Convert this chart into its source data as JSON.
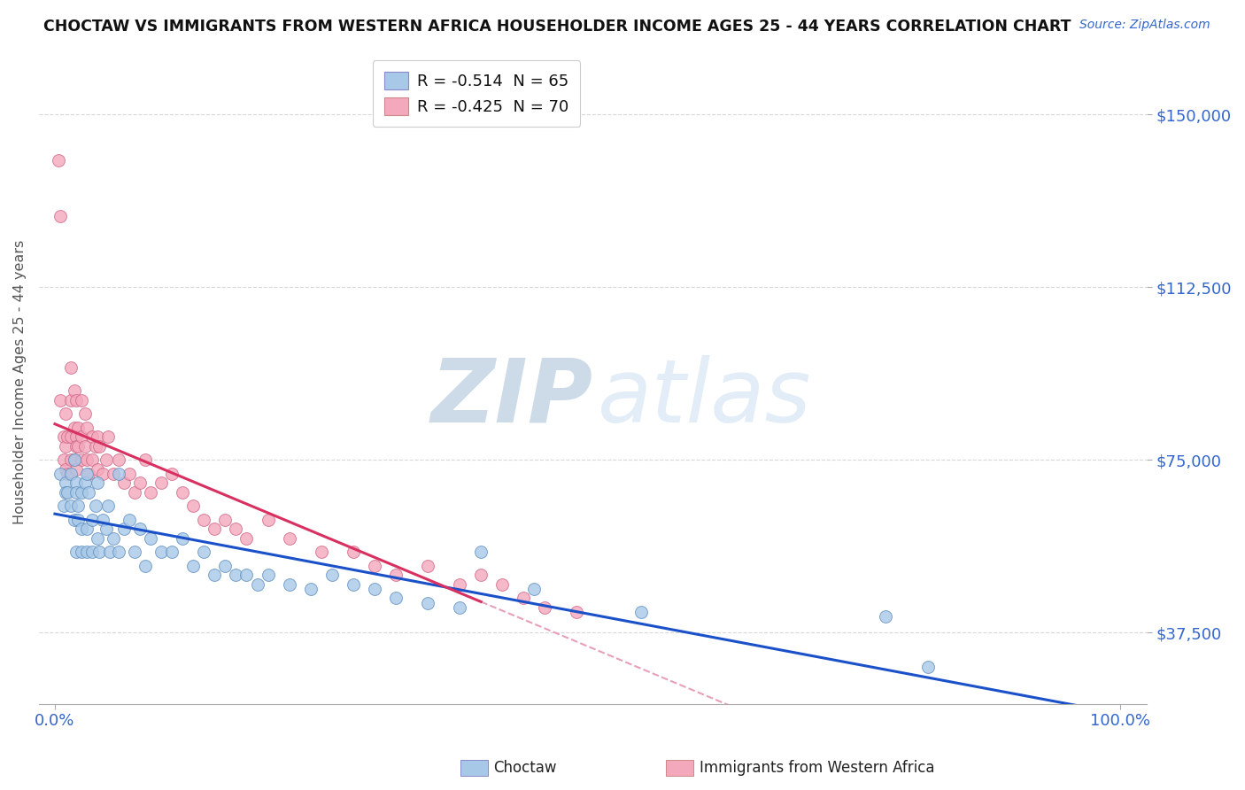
{
  "title": "CHOCTAW VS IMMIGRANTS FROM WESTERN AFRICA HOUSEHOLDER INCOME AGES 25 - 44 YEARS CORRELATION CHART",
  "source": "Source: ZipAtlas.com",
  "ylabel": "Householder Income Ages 25 - 44 years",
  "ylim": [
    22000,
    162000
  ],
  "yticks": [
    37500,
    75000,
    112500,
    150000
  ],
  "ytick_labels": [
    "$37,500",
    "$75,000",
    "$112,500",
    "$150,000"
  ],
  "xlim": [
    -0.015,
    1.025
  ],
  "xticks": [
    0.0,
    1.0
  ],
  "xtick_labels": [
    "0.0%",
    "100.0%"
  ],
  "choctaw_R": -0.514,
  "choctaw_N": 65,
  "wa_R": -0.425,
  "wa_N": 70,
  "choctaw_fill": "#a8c8e8",
  "choctaw_edge": "#6090c0",
  "wa_fill": "#f4a8bc",
  "wa_edge": "#d06888",
  "trend_blue": "#1a50c8",
  "trend_pink": "#d83060",
  "trend_pink_dash": "#e8a0b8",
  "grid_color": "#d8d8d8",
  "bg_color": "#ffffff",
  "title_color": "#111111",
  "source_color": "#3366cc",
  "tick_color_blue": "#3366cc",
  "legend_text_color": "#111111",
  "legend_rv_color": "#d03060",
  "legend_nv_color": "#1a50c8",
  "choctaw_x": [
    0.005,
    0.008,
    0.01,
    0.01,
    0.012,
    0.015,
    0.015,
    0.018,
    0.018,
    0.02,
    0.02,
    0.02,
    0.022,
    0.022,
    0.025,
    0.025,
    0.025,
    0.028,
    0.03,
    0.03,
    0.03,
    0.032,
    0.035,
    0.035,
    0.038,
    0.04,
    0.04,
    0.042,
    0.045,
    0.048,
    0.05,
    0.052,
    0.055,
    0.06,
    0.06,
    0.065,
    0.07,
    0.075,
    0.08,
    0.085,
    0.09,
    0.1,
    0.11,
    0.12,
    0.13,
    0.14,
    0.15,
    0.16,
    0.17,
    0.18,
    0.19,
    0.2,
    0.22,
    0.24,
    0.26,
    0.28,
    0.3,
    0.32,
    0.35,
    0.38,
    0.4,
    0.45,
    0.55,
    0.78,
    0.82
  ],
  "choctaw_y": [
    72000,
    65000,
    70000,
    68000,
    68000,
    65000,
    72000,
    62000,
    75000,
    70000,
    68000,
    55000,
    65000,
    62000,
    68000,
    60000,
    55000,
    70000,
    72000,
    60000,
    55000,
    68000,
    62000,
    55000,
    65000,
    70000,
    58000,
    55000,
    62000,
    60000,
    65000,
    55000,
    58000,
    72000,
    55000,
    60000,
    62000,
    55000,
    60000,
    52000,
    58000,
    55000,
    55000,
    58000,
    52000,
    55000,
    50000,
    52000,
    50000,
    50000,
    48000,
    50000,
    48000,
    47000,
    50000,
    48000,
    47000,
    45000,
    44000,
    43000,
    55000,
    47000,
    42000,
    41000,
    30000
  ],
  "wa_x": [
    0.003,
    0.005,
    0.005,
    0.008,
    0.008,
    0.01,
    0.01,
    0.01,
    0.012,
    0.012,
    0.015,
    0.015,
    0.015,
    0.015,
    0.018,
    0.018,
    0.018,
    0.02,
    0.02,
    0.02,
    0.02,
    0.022,
    0.022,
    0.025,
    0.025,
    0.025,
    0.028,
    0.028,
    0.03,
    0.03,
    0.032,
    0.035,
    0.035,
    0.038,
    0.04,
    0.04,
    0.042,
    0.045,
    0.048,
    0.05,
    0.055,
    0.06,
    0.065,
    0.07,
    0.075,
    0.08,
    0.085,
    0.09,
    0.1,
    0.11,
    0.12,
    0.13,
    0.14,
    0.15,
    0.16,
    0.17,
    0.18,
    0.2,
    0.22,
    0.25,
    0.28,
    0.3,
    0.32,
    0.35,
    0.38,
    0.4,
    0.42,
    0.44,
    0.46,
    0.49
  ],
  "wa_y": [
    140000,
    128000,
    88000,
    80000,
    75000,
    78000,
    85000,
    73000,
    80000,
    72000,
    95000,
    88000,
    80000,
    75000,
    90000,
    82000,
    75000,
    80000,
    78000,
    88000,
    73000,
    82000,
    78000,
    88000,
    80000,
    75000,
    85000,
    78000,
    82000,
    75000,
    72000,
    80000,
    75000,
    78000,
    80000,
    73000,
    78000,
    72000,
    75000,
    80000,
    72000,
    75000,
    70000,
    72000,
    68000,
    70000,
    75000,
    68000,
    70000,
    72000,
    68000,
    65000,
    62000,
    60000,
    62000,
    60000,
    58000,
    62000,
    58000,
    55000,
    55000,
    52000,
    50000,
    52000,
    48000,
    50000,
    48000,
    45000,
    43000,
    42000
  ],
  "wa_trend_xmax_solid": 0.4,
  "wa_trend_xmax_dash": 0.75,
  "marker_size": 100
}
